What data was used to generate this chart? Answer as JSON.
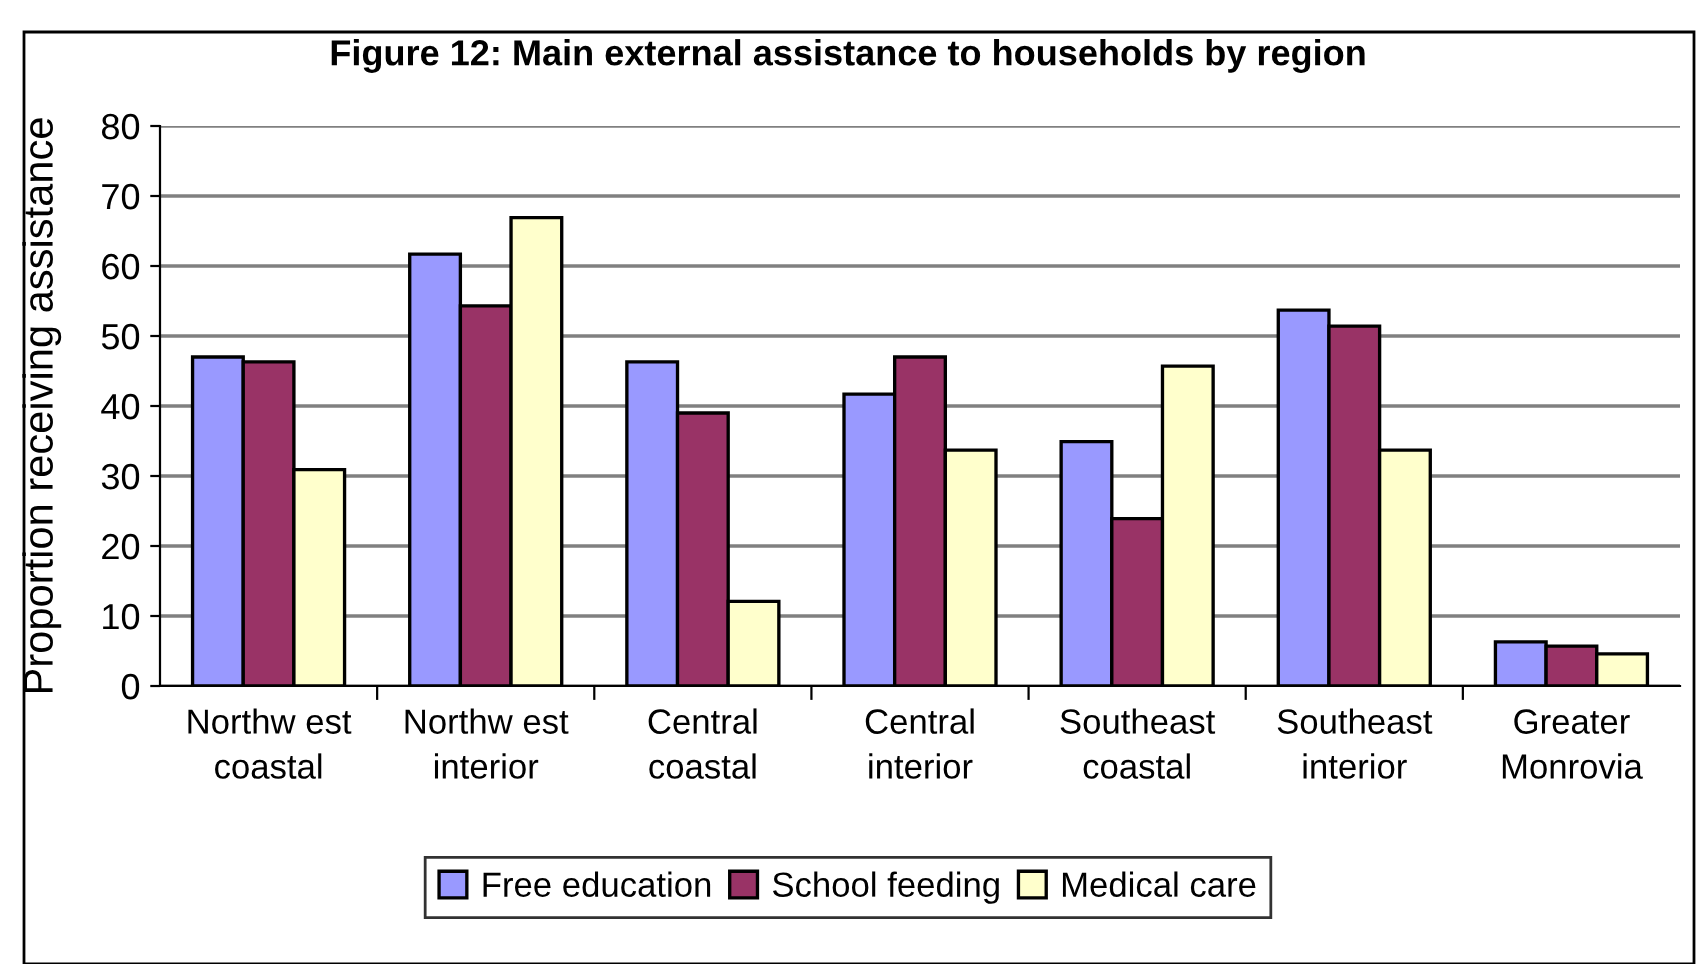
{
  "chart_data": {
    "type": "bar",
    "title": "Figure 12: Main external assistance to households by region",
    "ylabel": "Proportion receiving assistance",
    "categories": [
      "Northw est\ncoastal",
      "Northw est\ninterior",
      "Central\ncoastal",
      "Central\ninterior",
      "Southeast\ncoastal",
      "Southeast\ninterior",
      "Greater\nMonrovia"
    ],
    "series": [
      {
        "name": "Free education",
        "color": "#9999ff",
        "values": [
          47,
          61.7,
          46.3,
          41.7,
          34.9,
          53.7,
          6.3
        ]
      },
      {
        "name": "School feeding",
        "color": "#993366",
        "values": [
          46.3,
          54.3,
          39,
          47,
          23.9,
          51.4,
          5.7
        ]
      },
      {
        "name": "Medical care",
        "color": "#ffffcc",
        "values": [
          30.9,
          66.9,
          12.1,
          33.7,
          45.7,
          33.7,
          4.6
        ]
      }
    ],
    "ylim": [
      0,
      80
    ],
    "yticks": [
      0,
      10,
      20,
      30,
      40,
      50,
      60,
      70,
      80
    ],
    "grid": "y",
    "legend": "bottom"
  }
}
